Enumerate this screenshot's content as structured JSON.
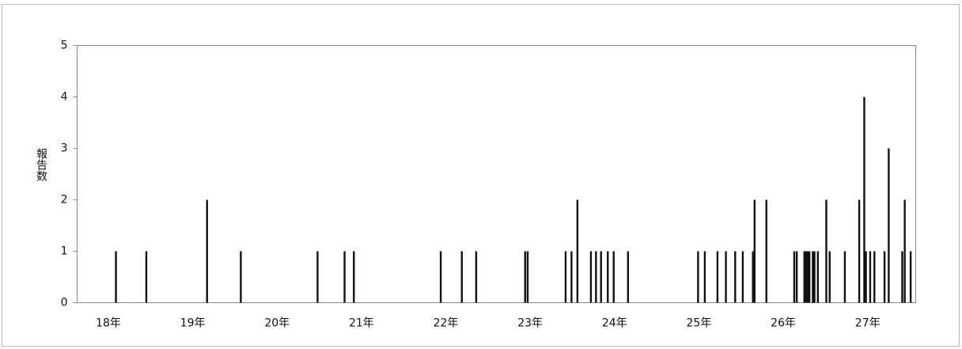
{
  "chart_data": {
    "type": "bar",
    "y_label": "報告数",
    "x": [
      18.09,
      18.45,
      19.17,
      19.57,
      20.48,
      20.8,
      20.91,
      21.94,
      22.19,
      22.36,
      22.94,
      22.97,
      23.42,
      23.49,
      23.56,
      23.72,
      23.78,
      23.84,
      23.92,
      23.99,
      24.16,
      24.99,
      25.07,
      25.22,
      25.32,
      25.43,
      25.52,
      25.64,
      25.66,
      25.8,
      26.13,
      26.16,
      26.25,
      26.27,
      26.29,
      26.31,
      26.35,
      26.37,
      26.41,
      26.51,
      26.55,
      26.73,
      26.9,
      26.96,
      26.98,
      27.03,
      27.08,
      27.2,
      27.25,
      27.41,
      27.44,
      27.51
    ],
    "values": [
      1,
      1,
      2,
      1,
      1,
      1,
      1,
      1,
      1,
      1,
      1,
      1,
      1,
      1,
      2,
      1,
      1,
      1,
      1,
      1,
      1,
      1,
      1,
      1,
      1,
      1,
      1,
      1,
      2,
      2,
      1,
      1,
      1,
      1,
      1,
      1,
      1,
      1,
      1,
      2,
      1,
      1,
      2,
      4,
      1,
      1,
      1,
      1,
      3,
      1,
      2,
      1
    ],
    "color": "#111111",
    "xlim": [
      17.63,
      27.57
    ],
    "xticks": [
      {
        "value": 18,
        "label": "18年"
      },
      {
        "value": 19,
        "label": "19年"
      },
      {
        "value": 20,
        "label": "20年"
      },
      {
        "value": 21,
        "label": "21年"
      },
      {
        "value": 22,
        "label": "22年"
      },
      {
        "value": 23,
        "label": "23年"
      },
      {
        "value": 24,
        "label": "24年"
      },
      {
        "value": 25,
        "label": "25年"
      },
      {
        "value": 26,
        "label": "26年"
      },
      {
        "value": 27,
        "label": "27年"
      }
    ],
    "ylim": [
      0,
      5
    ],
    "yticks": [
      0,
      1,
      2,
      3,
      4,
      5
    ]
  }
}
